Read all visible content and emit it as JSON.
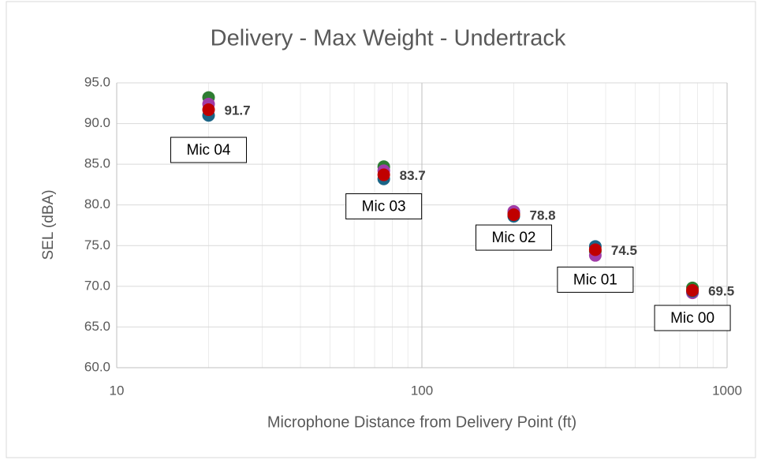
{
  "chart_data": {
    "type": "scatter",
    "title": "Delivery - Max Weight - Undertrack",
    "x_label": "Microphone Distance from Delivery Point (ft)",
    "y_label": "SEL (dBA)",
    "x": [
      20,
      75,
      200,
      370,
      770
    ],
    "series": [
      {
        "color": "#2e7d32",
        "values": [
          93.2,
          84.7,
          79.0,
          74.3,
          69.8
        ]
      },
      {
        "color": "#a03ca8",
        "values": [
          92.4,
          84.2,
          79.2,
          73.8,
          69.2
        ]
      },
      {
        "color": "#1b6587",
        "values": [
          91.0,
          83.2,
          78.6,
          74.9,
          69.4
        ]
      },
      {
        "color": "#c00000",
        "values": [
          91.7,
          83.7,
          78.8,
          74.5,
          69.5
        ]
      }
    ],
    "data_labels_series": 3,
    "annotations": [
      "Mic 04",
      "Mic 03",
      "Mic 02",
      "Mic 01",
      "Mic 00"
    ],
    "x_log": true,
    "minor_grid": true,
    "grid": true,
    "xlim": [
      10,
      1000
    ],
    "xticks": [
      10,
      100,
      1000
    ],
    "ylim": [
      60,
      95
    ],
    "yticks": [
      {
        "value": 60,
        "label": "60.0"
      },
      {
        "value": 65,
        "label": "65.0"
      },
      {
        "value": 70,
        "label": "70.0"
      },
      {
        "value": 75,
        "label": "75.0"
      },
      {
        "value": 80,
        "label": "80.0"
      },
      {
        "value": 85,
        "label": "85.0"
      },
      {
        "value": 90,
        "label": "90.0"
      },
      {
        "value": 95,
        "label": "95.0"
      }
    ]
  }
}
